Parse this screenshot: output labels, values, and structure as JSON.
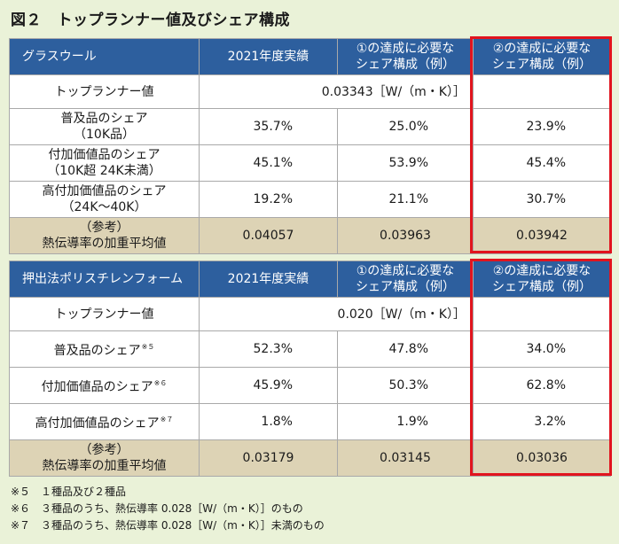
{
  "title": "図２　トップランナー値及びシェア構成",
  "table1": {
    "headers": [
      "グラスウール",
      "2021年度実績",
      "①の達成に必要な\nシェア構成（例）",
      "②の達成に必要な\nシェア構成（例）"
    ],
    "top_runner_label": "トップランナー値",
    "top_runner_value": "0.03343［W/（m・K）］",
    "rows": [
      {
        "label": "普及品のシェア\n（10K品）",
        "v1": "35.7%",
        "v2": "25.0%",
        "v3": "23.9%"
      },
      {
        "label": "付加価値品のシェア\n（10K超 24K未満）",
        "v1": "45.1%",
        "v2": "53.9%",
        "v3": "45.4%"
      },
      {
        "label": "高付加価値品のシェア\n（24K～40K）",
        "v1": "19.2%",
        "v2": "21.1%",
        "v3": "30.7%"
      }
    ],
    "ref": {
      "label": "（参考）\n熱伝導率の加重平均値",
      "v1": "0.04057",
      "v2": "0.03963",
      "v3": "0.03942"
    }
  },
  "table2": {
    "headers": [
      "押出法ポリスチレンフォーム",
      "2021年度実績",
      "①の達成に必要な\nシェア構成（例）",
      "②の達成に必要な\nシェア構成（例）"
    ],
    "top_runner_label": "トップランナー値",
    "top_runner_value": "0.020［W/（m・K）］",
    "rows": [
      {
        "label": "普及品のシェア",
        "sup": "※５",
        "v1": "52.3%",
        "v2": "47.8%",
        "v3": "34.0%"
      },
      {
        "label": "付加価値品のシェア",
        "sup": "※６",
        "v1": "45.9%",
        "v2": "50.3%",
        "v3": "62.8%"
      },
      {
        "label": "高付加価値品のシェア",
        "sup": "※７",
        "v1": "1.8%",
        "v2": "1.9%",
        "v3": "3.2%"
      }
    ],
    "ref": {
      "label": "（参考）\n熱伝導率の加重平均値",
      "v1": "0.03179",
      "v2": "0.03145",
      "v3": "0.03036"
    }
  },
  "notes": [
    "※５　１種品及び２種品",
    "※６　３種品のうち、熱伝導率 0.028［W/（m・K）］のもの",
    "※７　３種品のうち、熱伝導率 0.028［W/（m・K）］未満のもの"
  ]
}
